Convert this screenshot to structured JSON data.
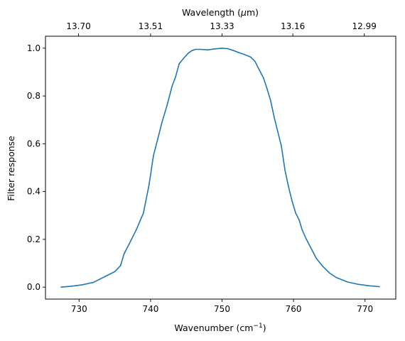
{
  "chart_data": {
    "type": "line",
    "xlabel": "Wavenumber (cm",
    "xlabel_sup": "−1",
    "xlabel_end": ")",
    "ylabel": "Filter response",
    "top_xlabel": "Wavelength (",
    "top_xlabel_mu": "μ",
    "top_xlabel_end": "m)",
    "xlim": [
      725.3,
      774.3
    ],
    "ylim": [
      -0.05,
      1.05
    ],
    "x_ticks": [
      730,
      740,
      750,
      760,
      770
    ],
    "x_tick_labels": [
      "730",
      "740",
      "750",
      "760",
      "770"
    ],
    "y_ticks": [
      0.0,
      0.2,
      0.4,
      0.6,
      0.8,
      1.0
    ],
    "y_tick_labels": [
      "0.0",
      "0.2",
      "0.4",
      "0.6",
      "0.8",
      "1.0"
    ],
    "top_x_ticks": [
      729.93,
      740.0,
      750.0,
      759.9,
      769.9
    ],
    "top_x_tick_labels": [
      "13.70",
      "13.51",
      "13.33",
      "13.16",
      "12.99"
    ],
    "grid": false,
    "line_color": "#1f77b4",
    "series": [
      {
        "x": [
          727.5,
          729.0,
          730.5,
          732.0,
          733.0,
          734.0,
          735.0,
          735.8,
          736.3,
          737.0,
          738.0,
          739.0,
          739.8,
          740.4,
          741.0,
          741.6,
          742.3,
          743.0,
          743.5,
          744.0,
          744.7,
          745.3,
          745.8,
          746.3,
          747.0,
          748.0,
          749.0,
          750.0,
          750.8,
          751.6,
          752.3,
          753.0,
          754.0,
          754.6,
          755.2,
          755.8,
          756.3,
          756.8,
          757.3,
          757.8,
          758.3,
          758.8,
          759.3,
          759.8,
          760.3,
          760.8,
          761.2,
          761.8,
          762.5,
          763.2,
          764.0,
          765.0,
          766.0,
          767.5,
          769.0,
          770.5,
          772.0
        ],
        "y": [
          0.0,
          0.004,
          0.01,
          0.02,
          0.035,
          0.05,
          0.065,
          0.09,
          0.14,
          0.18,
          0.24,
          0.31,
          0.43,
          0.55,
          0.62,
          0.69,
          0.76,
          0.84,
          0.88,
          0.935,
          0.96,
          0.98,
          0.99,
          0.995,
          0.995,
          0.993,
          0.997,
          1.0,
          0.998,
          0.99,
          0.982,
          0.975,
          0.963,
          0.945,
          0.91,
          0.875,
          0.83,
          0.78,
          0.71,
          0.65,
          0.59,
          0.49,
          0.42,
          0.36,
          0.31,
          0.28,
          0.24,
          0.2,
          0.16,
          0.12,
          0.09,
          0.06,
          0.04,
          0.022,
          0.012,
          0.006,
          0.002
        ]
      }
    ]
  }
}
